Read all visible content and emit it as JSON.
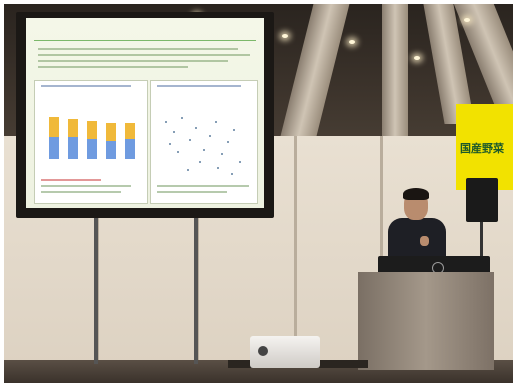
{
  "photo": {
    "subject": "presenter",
    "sign": {
      "text": "国産野菜",
      "background": "#f2e200",
      "text_color": "#1d5a2a"
    },
    "slide": {
      "title": "",
      "accent": "#3d8a3a"
    },
    "chart": {
      "bar_colors": [
        "#6f9be0",
        "#f0b93a"
      ]
    }
  }
}
